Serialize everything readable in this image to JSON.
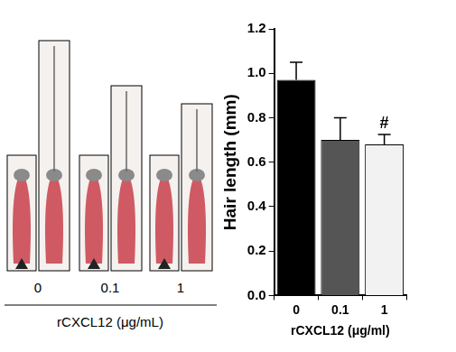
{
  "chart_data": {
    "type": "bar",
    "categories": [
      "0",
      "0.1",
      "1"
    ],
    "values": [
      0.97,
      0.7,
      0.68
    ],
    "errors": [
      0.08,
      0.1,
      0.045
    ],
    "colors": [
      "#000000",
      "#555555",
      "#f2f2f2"
    ],
    "y_label": "Hair length (mm)",
    "x_label": "rCXCL12 (μg/ml)",
    "ylim": [
      0,
      1.2
    ],
    "yticks": [
      {
        "value": 0,
        "label": "0.0"
      },
      0.2,
      0.4,
      0.6,
      0.8,
      {
        "value": 1,
        "label": "1.0"
      },
      1.2
    ],
    "grid": false,
    "annotations": [
      {
        "category": "1",
        "text": "#"
      }
    ]
  },
  "photo_panel": {
    "labels": [
      "0",
      "0.1",
      "1"
    ],
    "axis_label": "rCXCL12 (μg/mL)"
  }
}
